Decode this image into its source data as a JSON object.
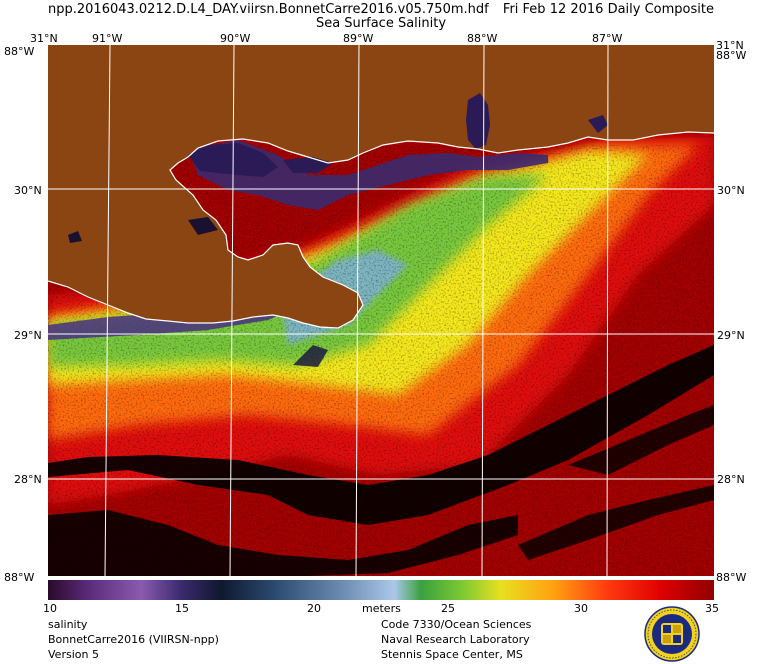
{
  "header": {
    "title_left": "npp.2016043.0212.D.L4_DAY.viirsn.BonnetCarre2016.v05.750m.hdf",
    "title_right": "Fri Feb 12 2016 Daily Composite",
    "subtitle": "Sea Surface Salinity"
  },
  "axes": {
    "lon_labels": [
      "91°W",
      "90°W",
      "89°W",
      "88°W",
      "87°W"
    ],
    "lat_labels": [
      "30°N",
      "29°N",
      "28°N"
    ],
    "corner_top_left_lat": "31°N",
    "corner_top_left_lon": "88°W",
    "corner_top_right_lat": "31°N",
    "corner_top_right_lon": "88°W",
    "corner_bottom_left": "88°W",
    "corner_bottom_right": "88°W"
  },
  "colorbar": {
    "ticks": [
      "10",
      "15",
      "20",
      "25",
      "30",
      "35"
    ],
    "unit": "meters",
    "min": 10,
    "max": 35
  },
  "footer": {
    "left_line1": "salinity",
    "left_line2": "BonnetCarre2016 (VIIRSN-npp)",
    "left_line3": "Version 5",
    "right_line1": "Code 7330/Ocean Sciences",
    "right_line2": "Naval Research Laboratory",
    "right_line3": "Stennis Space Center, MS"
  },
  "colors": {
    "land": "#8b4513",
    "offshore": "#a40000",
    "gridline": "#ffffff"
  }
}
